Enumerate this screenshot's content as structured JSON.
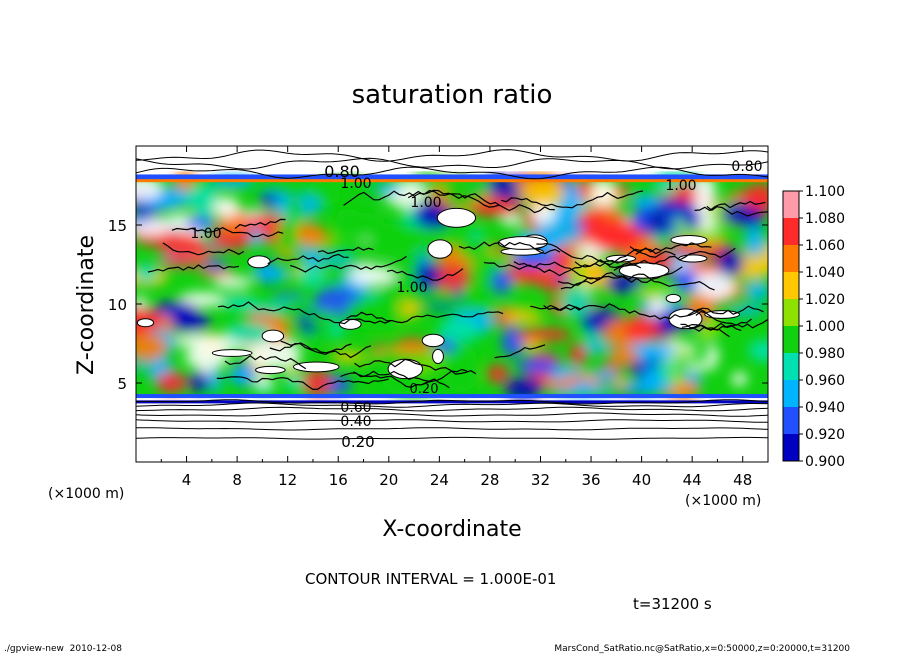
{
  "chart_data": {
    "type": "heatmap",
    "title": "saturation ratio",
    "xlabel": "X-coordinate",
    "ylabel": "Z-coordinate",
    "x_unit_label": "(×1000 m)",
    "y_unit_label": "(×1000 m)",
    "xlim": [
      0,
      50
    ],
    "ylim": [
      0,
      20
    ],
    "x_ticks": [
      "4",
      "8",
      "12",
      "16",
      "20",
      "24",
      "28",
      "32",
      "36",
      "40",
      "44",
      "48"
    ],
    "y_ticks": [
      "5",
      "10",
      "15"
    ],
    "colorbar": {
      "levels": [
        "1.100",
        "1.080",
        "1.060",
        "1.040",
        "1.020",
        "1.000",
        "0.980",
        "0.960",
        "0.940",
        "0.920",
        "0.900"
      ],
      "colors": [
        "#ff9aa8",
        "#ff2a2a",
        "#ff7a00",
        "#ffc800",
        "#8ee000",
        "#10d010",
        "#00e0b0",
        "#00b4ff",
        "#2050ff",
        "#0000c0",
        "#7000a0"
      ]
    },
    "contour_labels": [
      "0.80",
      "1.00",
      "1.00",
      "1.00",
      "1.00",
      "1.00",
      "0.80",
      "0.20",
      "0.60",
      "0.40",
      "0.20"
    ],
    "contour_interval": "CONTOUR INTERVAL = 1.000E-01",
    "time": "t=31200 s"
  },
  "footer": {
    "left": "./gpview-new  2010-12-08",
    "right": "MarsCond_SatRatio.nc@SatRatio,x=0:50000,z=0:20000,t=31200"
  }
}
